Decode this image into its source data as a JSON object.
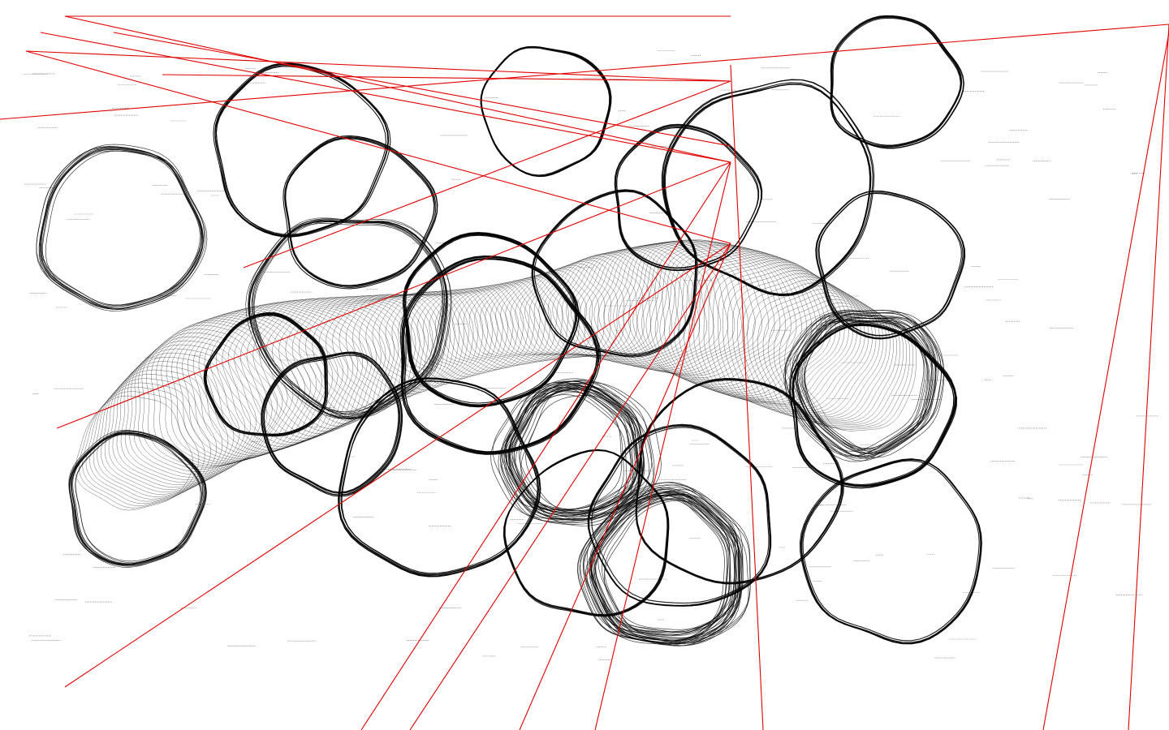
{
  "artwork": {
    "kind": "generative line drawing",
    "background_color": "#ffffff",
    "ink_color": "#000000",
    "line_color": "#e00000"
  }
}
